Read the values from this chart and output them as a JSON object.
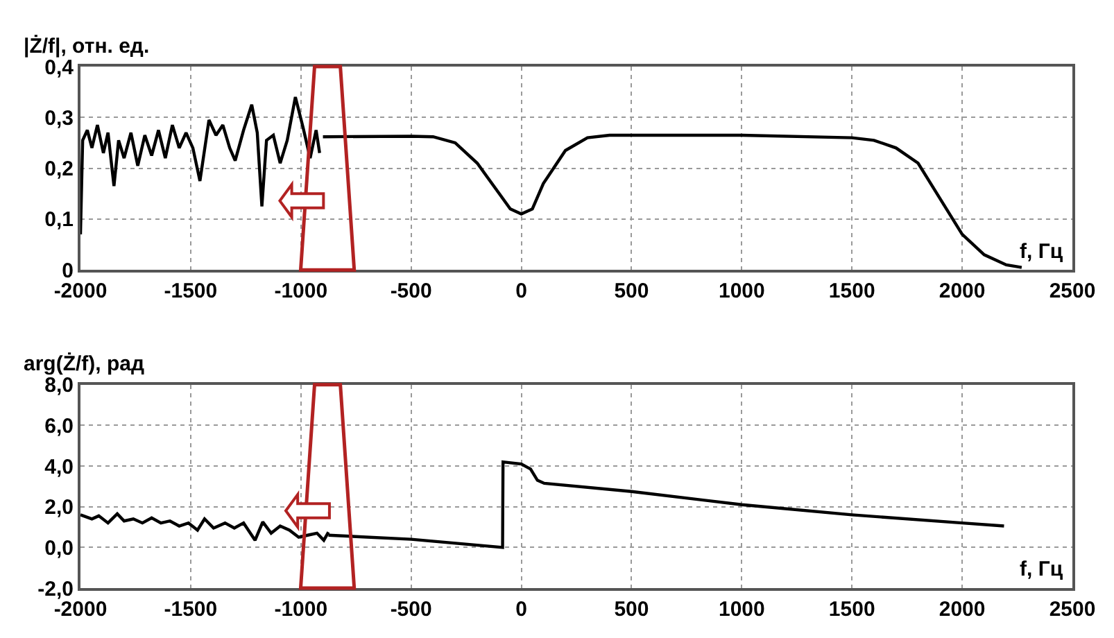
{
  "chart_data": [
    {
      "type": "line",
      "ylabel": "|Ż/f|, отн. ед.",
      "xlabel": "f, Гц",
      "series": [
        {
          "color": "#000000",
          "x": [
            -2000,
            -1990,
            -1969,
            -1948,
            -1923,
            -1896,
            -1875,
            -1848,
            -1827,
            -1802,
            -1771,
            -1740,
            -1708,
            -1677,
            -1646,
            -1615,
            -1583,
            -1552,
            -1521,
            -1490,
            -1458,
            -1417,
            -1385,
            -1354,
            -1323,
            -1298,
            -1260,
            -1223,
            -1198,
            -1177,
            -1156,
            -1125,
            -1094,
            -1062,
            -1025,
            -990,
            -958,
            -931,
            -915
          ],
          "values": [
            0.07,
            0.255,
            0.275,
            0.24,
            0.285,
            0.23,
            0.27,
            0.165,
            0.255,
            0.22,
            0.27,
            0.205,
            0.265,
            0.225,
            0.275,
            0.22,
            0.285,
            0.24,
            0.27,
            0.24,
            0.175,
            0.295,
            0.265,
            0.285,
            0.24,
            0.215,
            0.275,
            0.325,
            0.27,
            0.125,
            0.255,
            0.265,
            0.21,
            0.255,
            0.34,
            0.28,
            0.22,
            0.275,
            0.23
          ]
        },
        {
          "color": "#000000",
          "x": [
            -900,
            -500,
            -400,
            -300,
            -200,
            -100,
            -50,
            0,
            50,
            100,
            200,
            300,
            400,
            600,
            1000,
            1500,
            1600,
            1700,
            1800,
            1900,
            2000,
            2100,
            2200,
            2270
          ],
          "values": [
            0.262,
            0.263,
            0.262,
            0.25,
            0.21,
            0.15,
            0.12,
            0.11,
            0.12,
            0.17,
            0.235,
            0.26,
            0.265,
            0.265,
            0.265,
            0.26,
            0.255,
            0.24,
            0.21,
            0.14,
            0.07,
            0.03,
            0.01,
            0.005
          ]
        }
      ],
      "xlim": [
        -2000,
        2500
      ],
      "xticks": [
        -2000,
        -1500,
        -1000,
        -500,
        0,
        500,
        1000,
        1500,
        2000,
        2500
      ],
      "ylim": [
        0,
        0.4
      ],
      "yticks": [
        0,
        {
          "value": 0.1,
          "label": "0,1"
        },
        {
          "value": 0.2,
          "label": "0,2"
        },
        {
          "value": 0.3,
          "label": "0,3"
        },
        {
          "value": 0.4,
          "label": "0,4"
        }
      ],
      "grid": true
    },
    {
      "type": "line",
      "ylabel": "arg(Ż/f), рад",
      "xlabel": "f, Гц",
      "series": [
        {
          "color": "#000000",
          "x": [
            -2000,
            -1948,
            -1917,
            -1875,
            -1833,
            -1802,
            -1760,
            -1719,
            -1677,
            -1635,
            -1594,
            -1552,
            -1510,
            -1469,
            -1437,
            -1396,
            -1344,
            -1302,
            -1260,
            -1208,
            -1173,
            -1135,
            -1094,
            -1052,
            -1010,
            -969,
            -927,
            -896,
            -875
          ],
          "values": [
            1.6,
            1.4,
            1.55,
            1.2,
            1.65,
            1.3,
            1.4,
            1.2,
            1.45,
            1.2,
            1.3,
            1.05,
            1.2,
            0.85,
            1.4,
            0.95,
            1.2,
            0.95,
            1.2,
            0.35,
            1.25,
            0.7,
            1.05,
            0.85,
            0.5,
            0.6,
            0.7,
            0.35,
            0.75
          ]
        },
        {
          "color": "#000000",
          "x": [
            -875,
            -500,
            -85,
            -83,
            0,
            42,
            73,
            104,
            500,
            1000,
            1500,
            2000,
            2190
          ],
          "values": [
            0.6,
            0.4,
            0.0,
            4.2,
            4.1,
            3.85,
            3.3,
            3.15,
            2.75,
            2.1,
            1.6,
            1.2,
            1.05
          ]
        }
      ],
      "xlim": [
        -2000,
        2500
      ],
      "xticks": [
        -2000,
        -1500,
        -1000,
        -500,
        0,
        500,
        1000,
        1500,
        2000,
        2500
      ],
      "ylim": [
        -2,
        8
      ],
      "yticks": [
        {
          "value": -2,
          "label": "-2,0"
        },
        {
          "value": 0,
          "label": "0,0"
        },
        {
          "value": 2,
          "label": "2,0"
        },
        {
          "value": 4,
          "label": "4,0"
        },
        {
          "value": 6,
          "label": "6,0"
        },
        {
          "value": 8,
          "label": "8,0"
        }
      ],
      "grid": true
    }
  ]
}
